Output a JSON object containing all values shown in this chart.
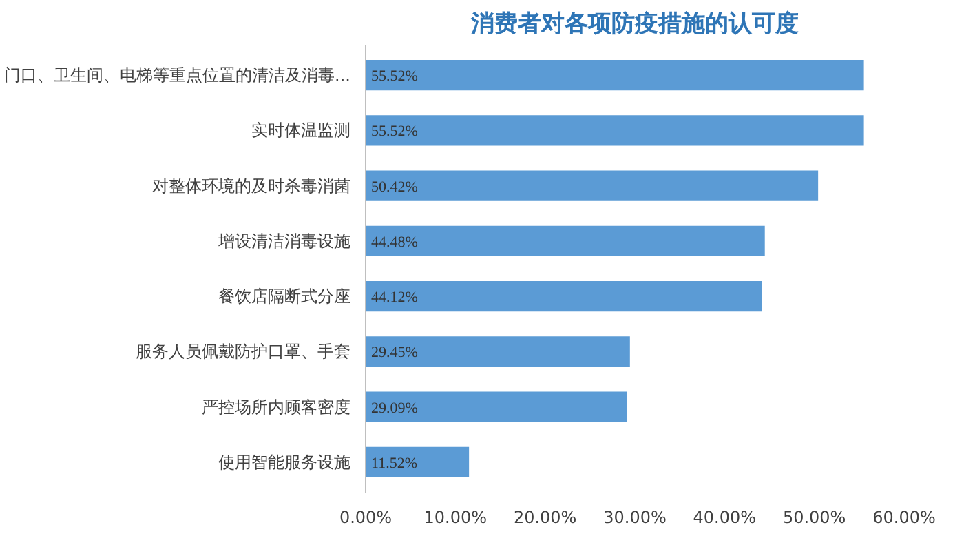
{
  "chart_data": {
    "type": "bar",
    "orientation": "horizontal",
    "title": "消费者对各项防疫措施的认可度",
    "categories": [
      "门口、卫生间、电梯等重点位置的清洁及消毒...",
      "实时体温监测",
      "对整体环境的及时杀毒消菌",
      "增设清洁消毒设施",
      "餐饮店隔断式分座",
      "服务人员佩戴防护口罩、手套",
      "严控场所内顾客密度",
      "使用智能服务设施"
    ],
    "values": [
      55.52,
      55.52,
      50.42,
      44.48,
      44.12,
      29.45,
      29.09,
      11.52
    ],
    "value_labels": [
      "55.52%",
      "55.52%",
      "50.42%",
      "44.48%",
      "44.12%",
      "29.45%",
      "29.09%",
      "11.52%"
    ],
    "color": "#5b9bd5",
    "xlim": [
      0,
      60
    ],
    "xticks": [
      {
        "value": 0,
        "label": "0.00%"
      },
      {
        "value": 10,
        "label": "10.00%"
      },
      {
        "value": 20,
        "label": "20.00%"
      },
      {
        "value": 30,
        "label": "30.00%"
      },
      {
        "value": 40,
        "label": "40.00%"
      },
      {
        "value": 50,
        "label": "50.00%"
      },
      {
        "value": 60,
        "label": "60.00%"
      }
    ],
    "grid": false
  }
}
